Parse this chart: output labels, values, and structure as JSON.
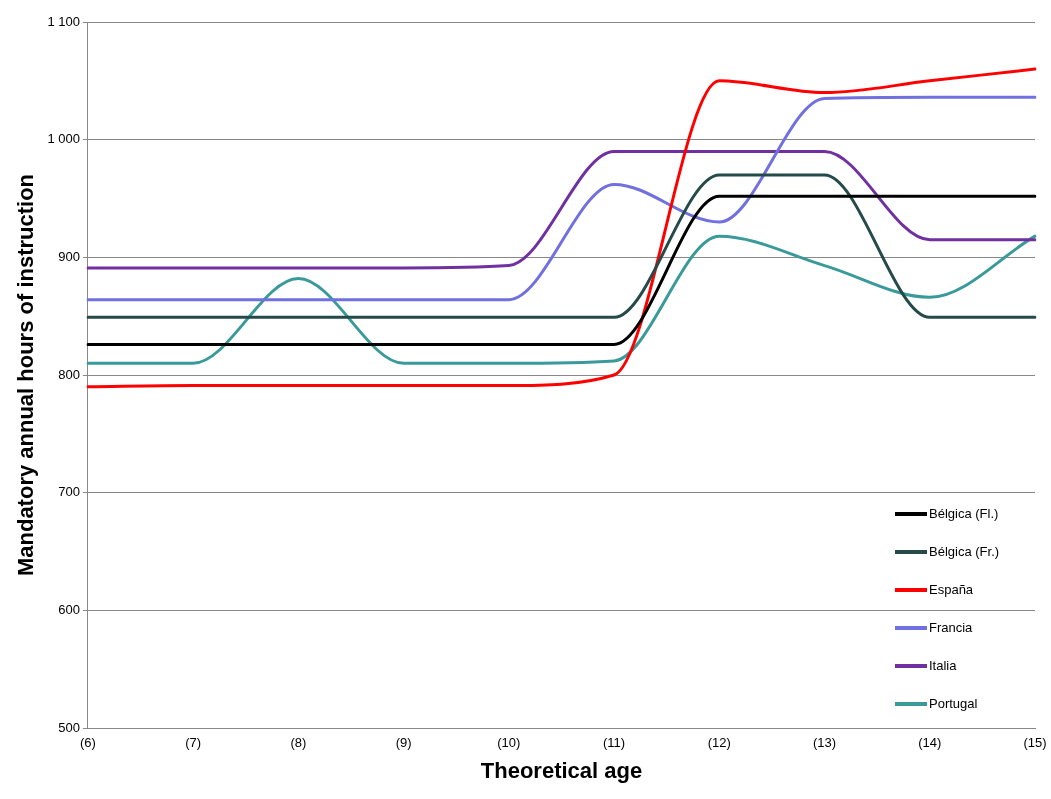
{
  "chart_data": {
    "type": "line",
    "xlabel": "Theoretical age",
    "ylabel": "Mandatory annual hours of instruction",
    "categories": [
      "(6)",
      "(7)",
      "(8)",
      "(9)",
      "(10)",
      "(11)",
      "(12)",
      "(13)",
      "(14)",
      "(15)"
    ],
    "series": [
      {
        "name": "Bélgica (Fl.)",
        "color": "#000000",
        "values": [
          826,
          826,
          826,
          826,
          826,
          826,
          952,
          952,
          952,
          952
        ]
      },
      {
        "name": "Bélgica (Fr.)",
        "color": "#254a4a",
        "values": [
          849,
          849,
          849,
          849,
          849,
          849,
          970,
          970,
          849,
          849
        ]
      },
      {
        "name": "España",
        "color": "#ff0000",
        "values": [
          790,
          791,
          791,
          791,
          791,
          800,
          1050,
          1040,
          1050,
          1060
        ]
      },
      {
        "name": "Francia",
        "color": "#7070e0",
        "values": [
          864,
          864,
          864,
          864,
          864,
          962,
          930,
          1035,
          1036,
          1036
        ]
      },
      {
        "name": "Italia",
        "color": "#7030a0",
        "values": [
          891,
          891,
          891,
          891,
          893,
          990,
          990,
          990,
          915,
          915
        ]
      },
      {
        "name": "Portugal",
        "color": "#3a9a9a",
        "values": [
          810,
          810,
          882,
          810,
          810,
          812,
          918,
          893,
          866,
          918
        ]
      }
    ],
    "ylim": [
      500,
      1100
    ],
    "yticks": [
      500,
      600,
      700,
      800,
      900,
      {
        "value": 1000,
        "label": "1 000"
      },
      {
        "value": 1100,
        "label": "1 100"
      }
    ],
    "grid": "y",
    "legend": "bottom right",
    "marker": "none",
    "line_style": "solid"
  }
}
